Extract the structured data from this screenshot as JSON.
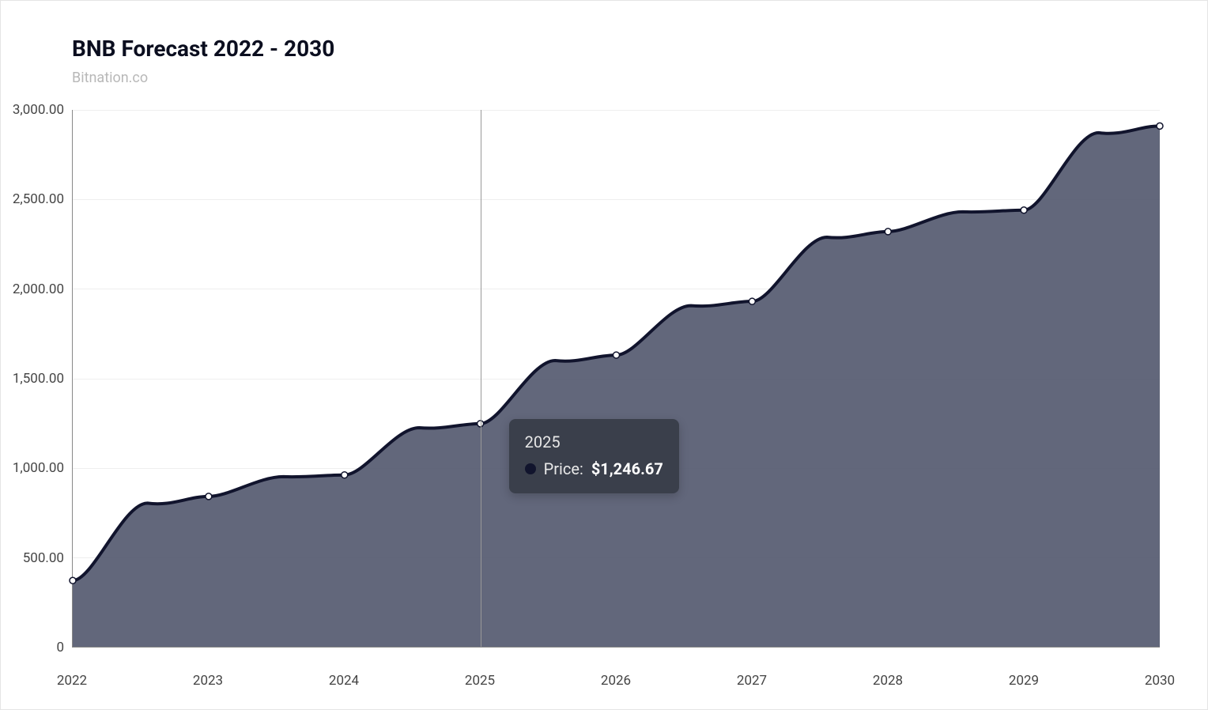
{
  "header": {
    "title": "BNB Forecast 2022 - 2030",
    "subtitle": "Bitnation.co"
  },
  "chart": {
    "type": "area",
    "background_color": "#ffffff",
    "grid_color": "#eeeeee",
    "axis_color": "#888888",
    "area_fill": "#555a70",
    "area_fill_opacity": 0.92,
    "line_color": "#11142d",
    "line_width": 2.5,
    "marker_fill": "#ffffff",
    "marker_stroke": "#11142d",
    "marker_radius": 4,
    "y_axis": {
      "min": 0,
      "max": 3000,
      "tick_step": 500,
      "ticks": [
        {
          "v": 0,
          "label": "0"
        },
        {
          "v": 500,
          "label": "500.00"
        },
        {
          "v": 1000,
          "label": "1,000.00"
        },
        {
          "v": 1500,
          "label": "1,500.00"
        },
        {
          "v": 2000,
          "label": "2,000.00"
        },
        {
          "v": 2500,
          "label": "2,500.00"
        },
        {
          "v": 3000,
          "label": "3,000.00"
        }
      ]
    },
    "x_axis": {
      "min": 2022,
      "max": 2030,
      "ticks": [
        {
          "v": 2022,
          "label": "2022"
        },
        {
          "v": 2023,
          "label": "2023"
        },
        {
          "v": 2024,
          "label": "2024"
        },
        {
          "v": 2025,
          "label": "2025"
        },
        {
          "v": 2026,
          "label": "2026"
        },
        {
          "v": 2027,
          "label": "2027"
        },
        {
          "v": 2028,
          "label": "2028"
        },
        {
          "v": 2029,
          "label": "2029"
        },
        {
          "v": 2030,
          "label": "2030"
        }
      ]
    },
    "series": {
      "name": "Price",
      "years": [
        2022,
        2023,
        2024,
        2025,
        2026,
        2027,
        2028,
        2029,
        2030
      ],
      "values": [
        370,
        840,
        960,
        1246.67,
        1630,
        1930,
        2320,
        2440,
        2910
      ]
    },
    "tooltip": {
      "year_label": "2025",
      "series_label": "Price:",
      "value_label": "$1,246.67",
      "hover_year": 2025,
      "background": "#3a3f4b",
      "text_color": "#ffffff",
      "dot_color": "#11142d"
    }
  }
}
